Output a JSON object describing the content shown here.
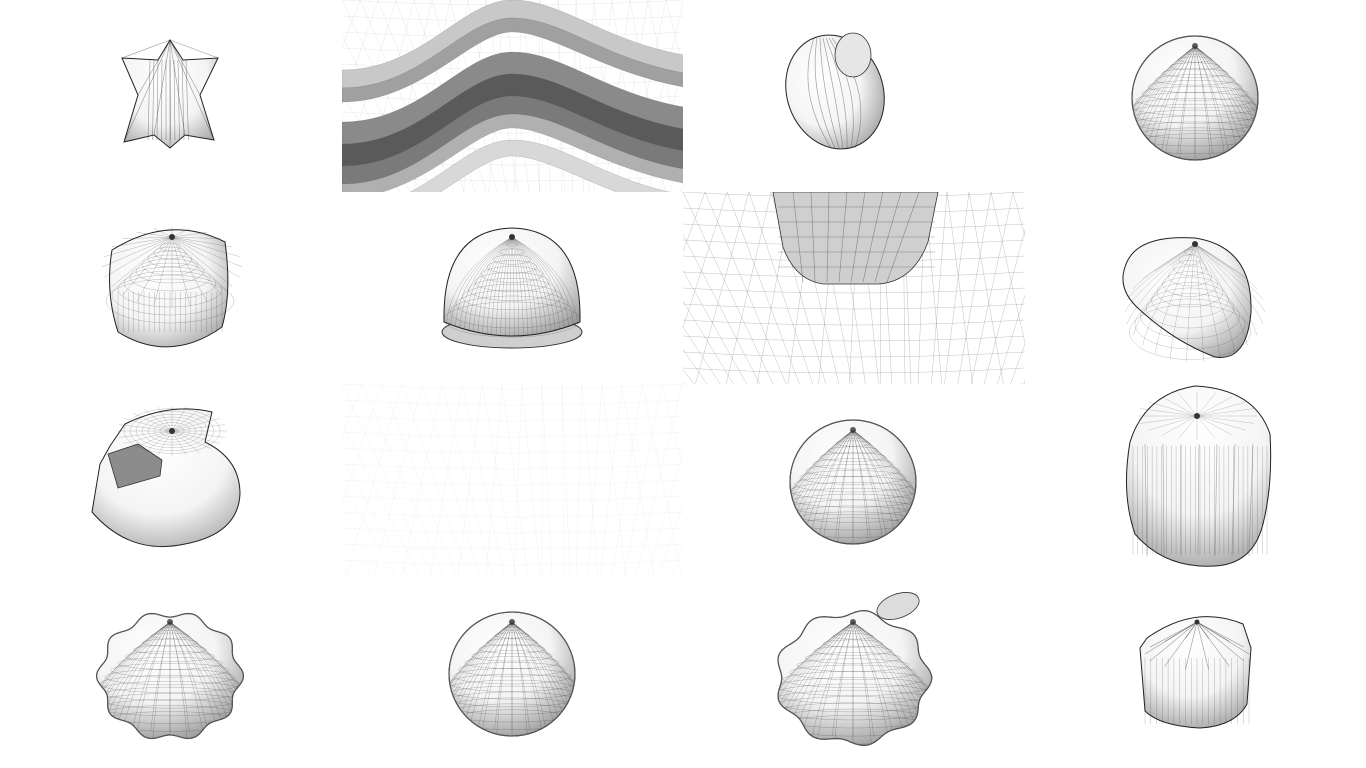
{
  "gallery": {
    "rows": 4,
    "columns": 4,
    "background": "#ffffff",
    "mesh_color": "#333333",
    "shade_light": "#f4f4f4",
    "shade_dark": "#9a9a9a",
    "tiles": [
      {
        "name": "tile-star-prism-mesh",
        "kind": "star"
      },
      {
        "name": "tile-curved-bands-closeup",
        "kind": "bands"
      },
      {
        "name": "tile-lobed-ellipsoid-mesh",
        "kind": "lobed"
      },
      {
        "name": "tile-sphere-mesh",
        "kind": "sphere"
      },
      {
        "name": "tile-flat-top-blob-mesh",
        "kind": "blob-flat"
      },
      {
        "name": "tile-dome-mesh",
        "kind": "dome"
      },
      {
        "name": "tile-prism-base-closeup",
        "kind": "prism-base"
      },
      {
        "name": "tile-oblique-blob-mesh",
        "kind": "blob-oblique"
      },
      {
        "name": "tile-stepped-shape-mesh",
        "kind": "stepped"
      },
      {
        "name": "tile-faint-wireframe",
        "kind": "faint"
      },
      {
        "name": "tile-round-blob-mesh",
        "kind": "sphere"
      },
      {
        "name": "tile-fluted-cylinder-mesh",
        "kind": "fluted-cyl"
      },
      {
        "name": "tile-pumpkin-mesh",
        "kind": "pumpkin"
      },
      {
        "name": "tile-sphere-mesh-2",
        "kind": "sphere"
      },
      {
        "name": "tile-pumpkin-fin-mesh",
        "kind": "pumpkin-fin"
      },
      {
        "name": "tile-star-cylinder-mesh",
        "kind": "star-cyl"
      }
    ]
  }
}
